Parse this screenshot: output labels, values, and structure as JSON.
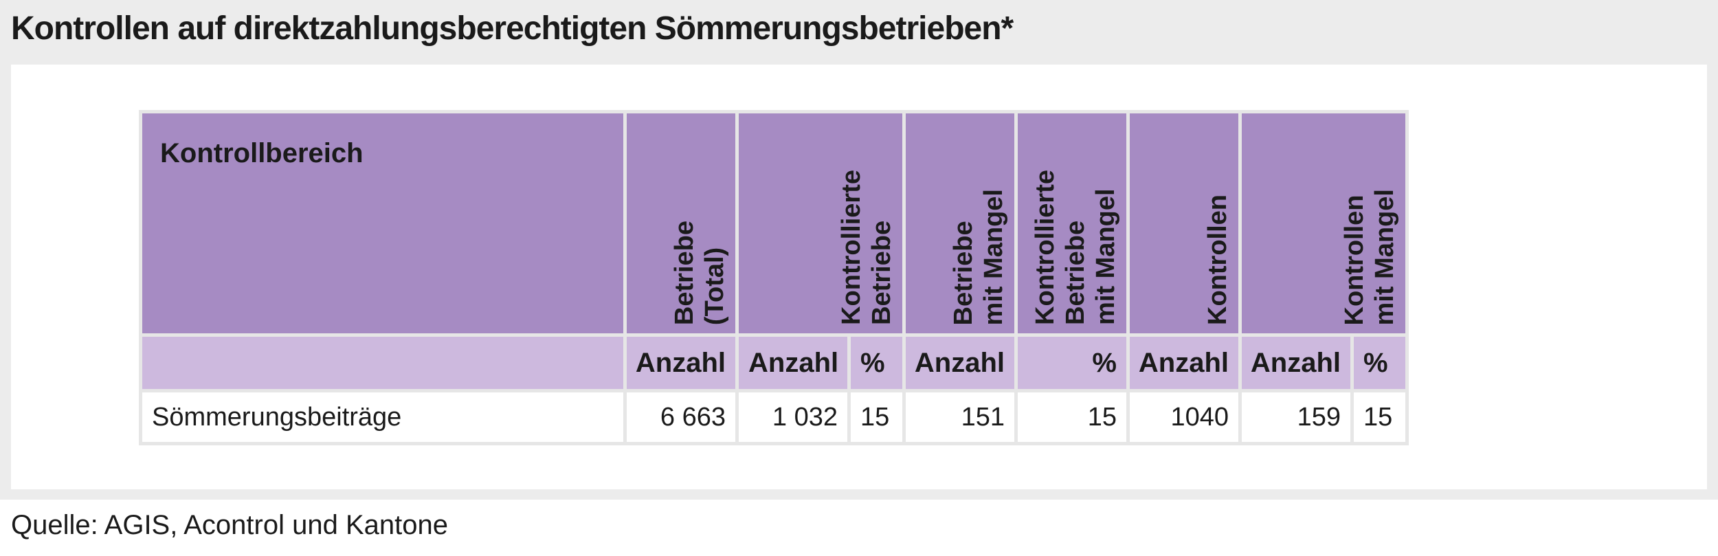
{
  "title": "Kontrollen auf direktzahlungsberechtigten Sömmerungsbetrieben*",
  "table": {
    "row_header": "Kontrollbereich",
    "columns": [
      "Betriebe\n(Total)",
      "Kontrollierte\nBetriebe",
      "Betriebe\nmit Mangel",
      "Kontrollierte\nBetriebe\nmit Mangel",
      "Kontrollen",
      "Kontrollen\nmit Mangel"
    ],
    "units": [
      "Anzahl",
      "Anzahl",
      "%",
      "Anzahl",
      "%",
      "Anzahl",
      "Anzahl",
      "%"
    ],
    "rows": [
      {
        "label": "Sömmerungsbeiträge",
        "values": [
          "6 663",
          "1 032",
          "15",
          "151",
          "15",
          "1040",
          "159",
          "15"
        ]
      }
    ]
  },
  "source": "Quelle: AGIS, Acontrol und Kantone"
}
